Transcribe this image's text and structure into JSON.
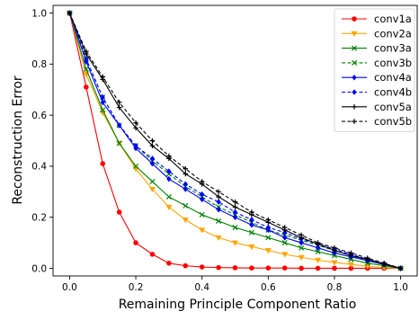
{
  "chart_data": {
    "type": "line",
    "xlabel": "Remaining Principle Component Ratio",
    "ylabel": "Reconstruction Error",
    "xlim": [
      -0.05,
      1.05
    ],
    "ylim": [
      -0.03,
      1.03
    ],
    "xticks": [
      "0.0",
      "0.2",
      "0.4",
      "0.6",
      "0.8",
      "1.0"
    ],
    "yticks": [
      "0.0",
      "0.2",
      "0.4",
      "0.6",
      "0.8",
      "1.0"
    ],
    "grid": false,
    "legend_position": "top-right",
    "x": [
      0.0,
      0.05,
      0.1,
      0.15,
      0.2,
      0.25,
      0.3,
      0.35,
      0.4,
      0.45,
      0.5,
      0.55,
      0.6,
      0.65,
      0.7,
      0.75,
      0.8,
      0.85,
      0.9,
      0.95,
      1.0
    ],
    "series": [
      {
        "name": "conv1a",
        "color": "#ff0000",
        "dash": "solid",
        "marker": "circle",
        "values": [
          1.0,
          0.71,
          0.41,
          0.22,
          0.1,
          0.055,
          0.02,
          0.01,
          0.005,
          0.003,
          0.002,
          0.001,
          0.001,
          0.001,
          0.0,
          0.0,
          0.0,
          0.0,
          0.0,
          0.0,
          0.0
        ]
      },
      {
        "name": "conv2a",
        "color": "#ffa500",
        "dash": "solid",
        "marker": "triangle",
        "values": [
          1.0,
          0.76,
          0.61,
          0.49,
          0.39,
          0.31,
          0.24,
          0.19,
          0.15,
          0.12,
          0.1,
          0.085,
          0.07,
          0.055,
          0.043,
          0.032,
          0.023,
          0.015,
          0.008,
          0.003,
          0.0
        ]
      },
      {
        "name": "conv3a",
        "color": "#008000",
        "dash": "solid",
        "marker": "x",
        "values": [
          1.0,
          0.78,
          0.62,
          0.49,
          0.4,
          0.34,
          0.28,
          0.245,
          0.21,
          0.185,
          0.16,
          0.14,
          0.12,
          0.1,
          0.08,
          0.065,
          0.05,
          0.035,
          0.02,
          0.01,
          0.0
        ]
      },
      {
        "name": "conv3b",
        "color": "#008000",
        "dash": "dashed",
        "marker": "x",
        "values": [
          1.0,
          0.82,
          0.67,
          0.56,
          0.48,
          0.42,
          0.37,
          0.32,
          0.28,
          0.24,
          0.21,
          0.18,
          0.15,
          0.13,
          0.11,
          0.09,
          0.07,
          0.05,
          0.03,
          0.015,
          0.0
        ]
      },
      {
        "name": "conv4a",
        "color": "#0000ff",
        "dash": "solid",
        "marker": "diamond",
        "values": [
          1.0,
          0.81,
          0.65,
          0.56,
          0.47,
          0.41,
          0.35,
          0.31,
          0.27,
          0.23,
          0.2,
          0.17,
          0.15,
          0.12,
          0.1,
          0.08,
          0.06,
          0.045,
          0.03,
          0.015,
          0.0
        ]
      },
      {
        "name": "conv4b",
        "color": "#0000ff",
        "dash": "dashed",
        "marker": "diamond",
        "values": [
          1.0,
          0.82,
          0.67,
          0.56,
          0.48,
          0.43,
          0.38,
          0.33,
          0.29,
          0.26,
          0.22,
          0.19,
          0.16,
          0.14,
          0.115,
          0.095,
          0.075,
          0.055,
          0.035,
          0.018,
          0.0
        ]
      },
      {
        "name": "conv5a",
        "color": "#000000",
        "dash": "solid",
        "marker": "plus",
        "values": [
          1.0,
          0.84,
          0.74,
          0.63,
          0.55,
          0.48,
          0.43,
          0.37,
          0.33,
          0.28,
          0.24,
          0.21,
          0.18,
          0.15,
          0.12,
          0.095,
          0.07,
          0.05,
          0.035,
          0.015,
          0.0
        ]
      },
      {
        "name": "conv5b",
        "color": "#000000",
        "dash": "dashed",
        "marker": "plus",
        "values": [
          1.0,
          0.85,
          0.75,
          0.65,
          0.57,
          0.5,
          0.44,
          0.39,
          0.34,
          0.3,
          0.26,
          0.22,
          0.19,
          0.16,
          0.13,
          0.1,
          0.08,
          0.06,
          0.04,
          0.02,
          0.0
        ]
      }
    ]
  }
}
